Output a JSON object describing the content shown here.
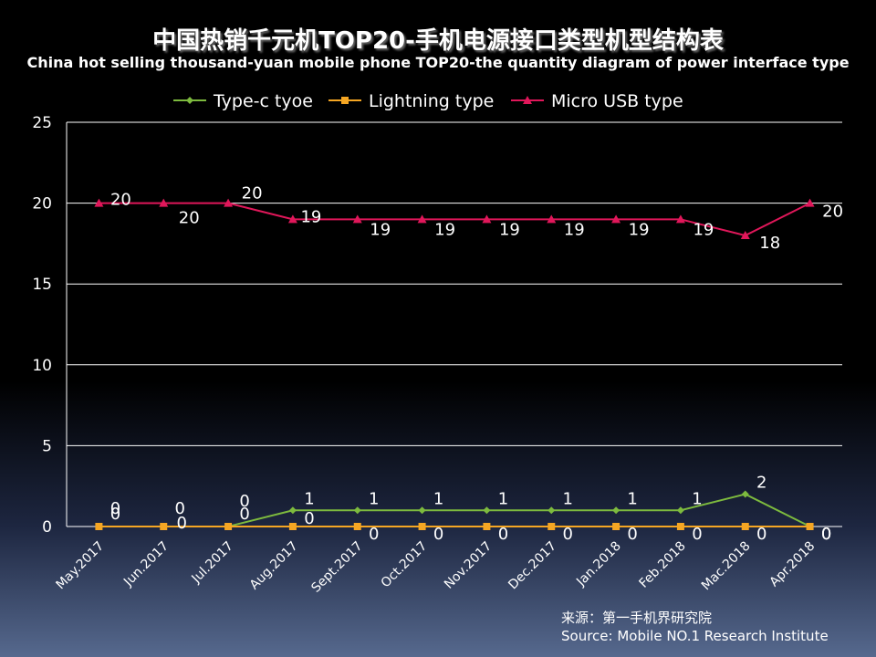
{
  "title_cn": "中国热销千元机TOP20-手机电源接口类型机型结构表",
  "title_en": "China hot selling thousand-yuan mobile phone TOP20-the quantity diagram of power interface type",
  "source_cn": "来源：第一手机界研究院",
  "source_en": "Source: Mobile NO.1 Research Institute",
  "chart_data": {
    "type": "line",
    "categories": [
      "May.2017",
      "Jun.2017",
      "Jul.2017",
      "Aug.2017",
      "Sept.2017",
      "Oct.2017",
      "Nov.2017",
      "Dec.2017",
      "Jan.2018",
      "Feb.2018",
      "Mac.2018",
      "Apr.2018"
    ],
    "ylim": [
      0,
      25
    ],
    "yticks": [
      0,
      5,
      10,
      15,
      20,
      25
    ],
    "grid": true,
    "legend_position": "top",
    "series": [
      {
        "name": "Type-c tyoe",
        "color": "#7dba3e",
        "marker": "diamond",
        "values": [
          0,
          0,
          0,
          1,
          1,
          1,
          1,
          1,
          1,
          1,
          2,
          0
        ]
      },
      {
        "name": "Lightning type",
        "color": "#f5a623",
        "marker": "square",
        "values": [
          0,
          0,
          0,
          0,
          0,
          0,
          0,
          0,
          0,
          0,
          0,
          0
        ]
      },
      {
        "name": "Micro USB type",
        "color": "#e0175a",
        "marker": "triangle",
        "values": [
          20,
          20,
          20,
          19,
          19,
          19,
          19,
          19,
          19,
          19,
          18,
          20
        ]
      }
    ]
  }
}
